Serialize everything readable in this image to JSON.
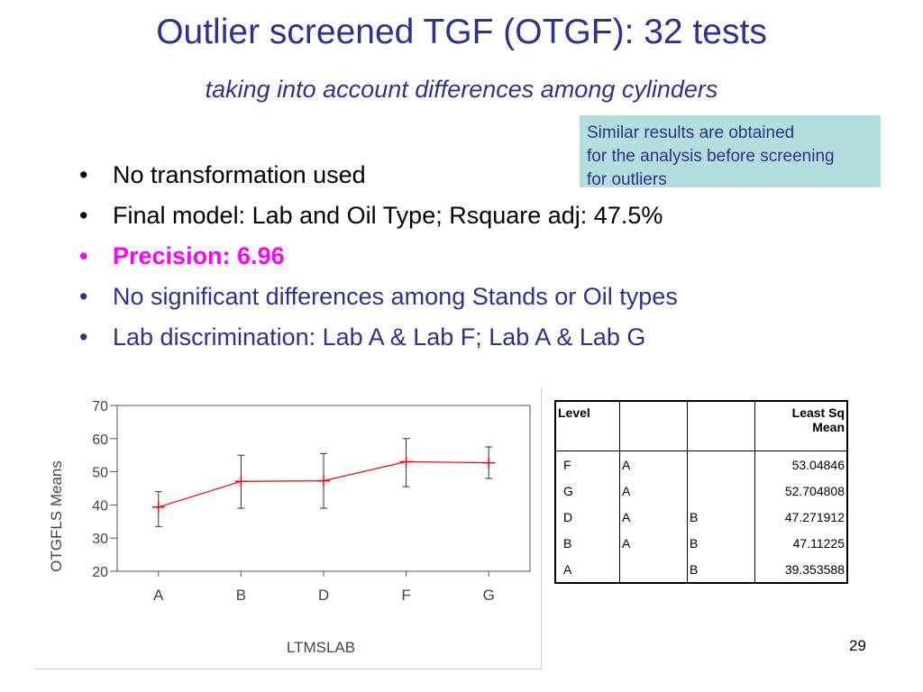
{
  "slide": {
    "title": "Outlier screened TGF (OTGF): 32 tests",
    "subtitle": "taking into account differences among cylinders",
    "note": [
      "Similar results are obtained",
      "for the analysis before screening",
      "for outliers"
    ],
    "bullets": [
      {
        "text": "No transformation used",
        "style": "black"
      },
      {
        "text": "Final model: Lab and Oil Type; Rsquare adj: 47.5%",
        "style": "black"
      },
      {
        "text": "Precision: 6.96",
        "style": "magenta"
      },
      {
        "text": "No significant differences among Stands or Oil types",
        "style": "blue"
      },
      {
        "text": "Lab discrimination: Lab A & Lab F; Lab A & Lab G",
        "style": "blue"
      }
    ],
    "bullet_symbol": "•",
    "page_number": "29",
    "colors": {
      "title": "#2e3192",
      "note_bg": "#b3dedd",
      "highlight": "#ff00ff",
      "line": "#ff0000"
    }
  },
  "chart_data": {
    "type": "line",
    "categories": [
      "A",
      "B",
      "D",
      "F",
      "G"
    ],
    "values": [
      39.353588,
      47.11225,
      47.271912,
      53.04846,
      52.704808
    ],
    "error_low": [
      33.5,
      39,
      39,
      45.5,
      48
    ],
    "error_high": [
      44,
      55,
      55.5,
      60,
      57.5
    ],
    "xlabel": "LTMSLAB",
    "ylabel": "OTGFLS Means",
    "ylim": [
      20,
      70
    ],
    "yticks": [
      20,
      30,
      40,
      50,
      60,
      70
    ],
    "grid": false
  },
  "table": {
    "headers": [
      "Level",
      "",
      "",
      "Least Sq\nMean"
    ],
    "header_level": "Level",
    "header_lsm_1": "Least Sq",
    "header_lsm_2": "Mean",
    "rows": [
      {
        "level": "F",
        "g1": "A",
        "g2": "",
        "mean": "53.04846"
      },
      {
        "level": "G",
        "g1": "A",
        "g2": "",
        "mean": "52.704808"
      },
      {
        "level": "D",
        "g1": "A",
        "g2": "B",
        "mean": "47.271912"
      },
      {
        "level": "B",
        "g1": "A",
        "g2": "B",
        "mean": "47.11225"
      },
      {
        "level": "A",
        "g1": "",
        "g2": "B",
        "mean": "39.353588"
      }
    ]
  }
}
